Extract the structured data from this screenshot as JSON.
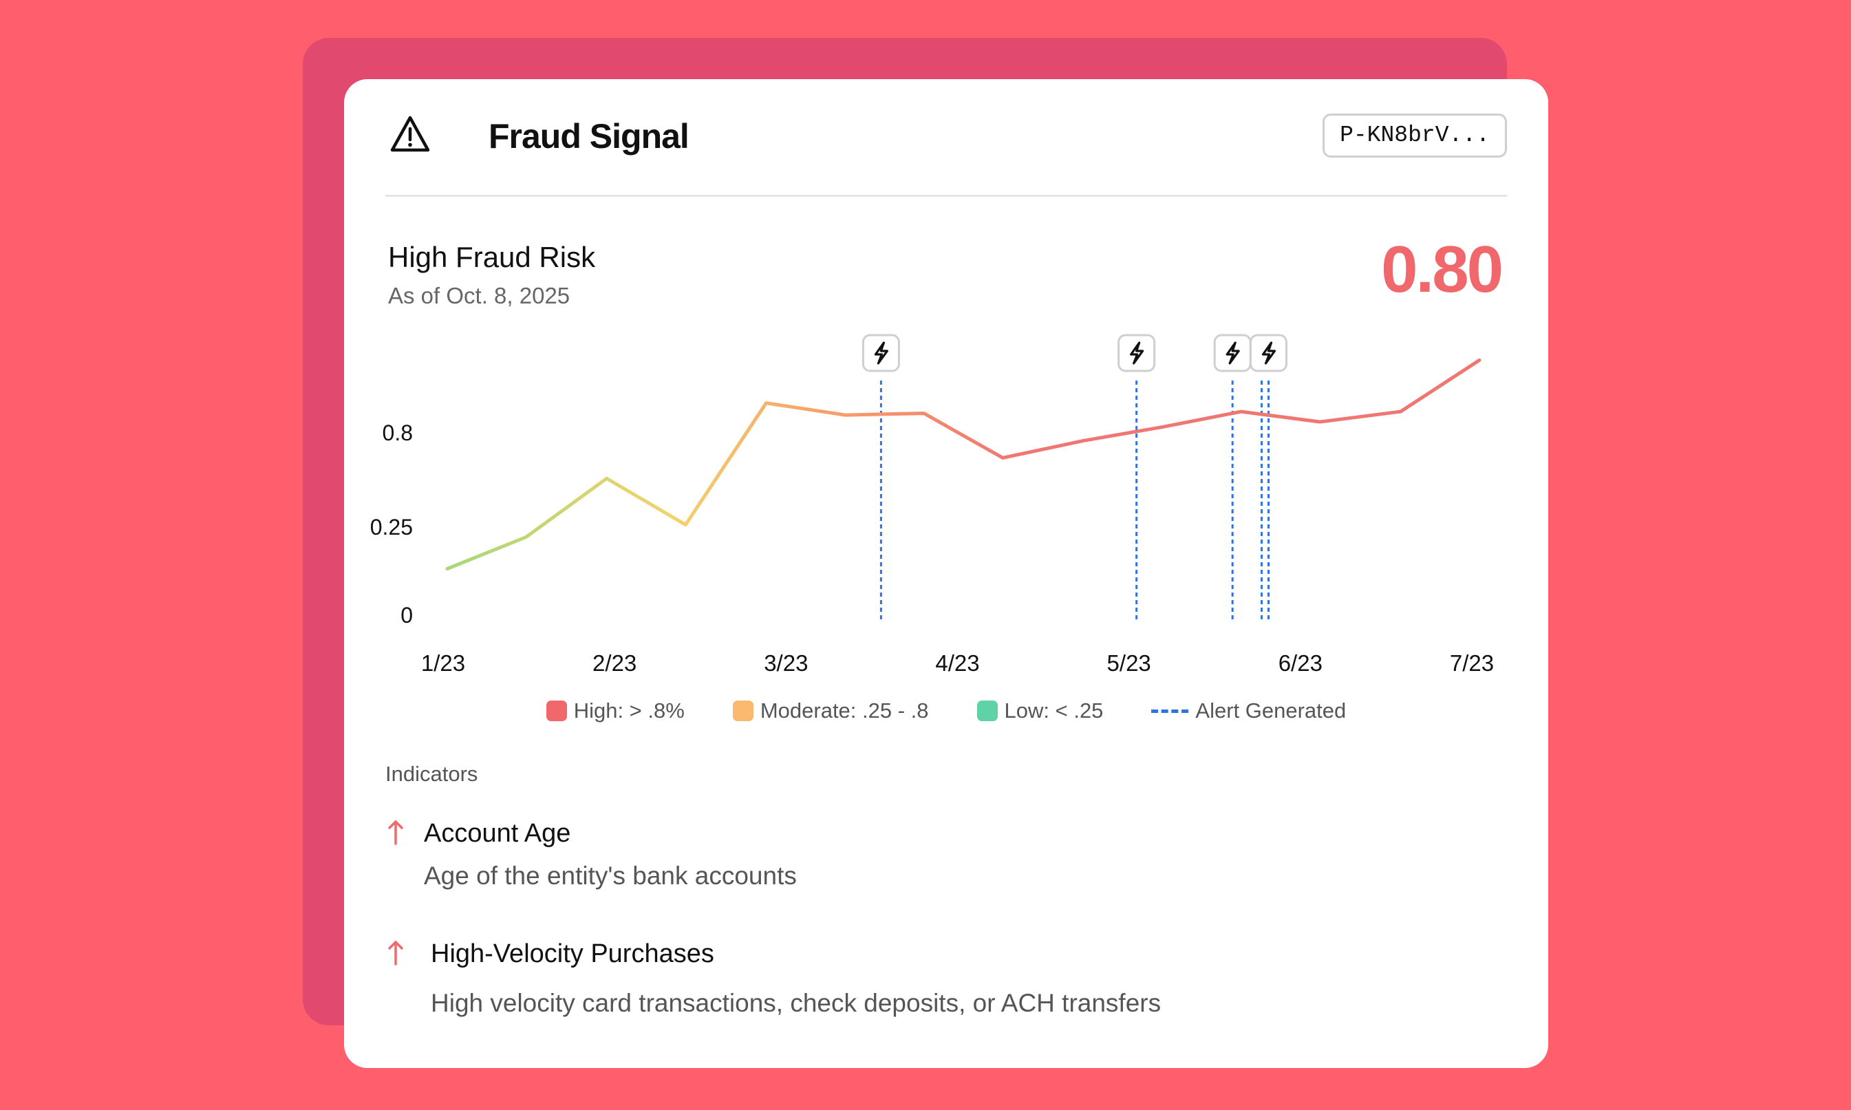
{
  "header": {
    "title": "Fraud Signal",
    "id_label": "P-KN8brV..."
  },
  "risk": {
    "label": "High Fraud Risk",
    "as_of": "As of Oct. 8, 2025",
    "score": "0.80",
    "score_color": "#f0676c"
  },
  "chart_data": {
    "type": "line",
    "x_tick_labels": [
      "1/23",
      "2/23",
      "3/23",
      "4/23",
      "5/23",
      "6/23",
      "7/23"
    ],
    "y_tick_labels": [
      "0.8",
      "0.25",
      "0"
    ],
    "x_position_units": "months from 1/23",
    "series": [
      {
        "x": [
          0,
          0.46,
          0.93,
          1.39,
          1.86,
          2.32,
          2.78,
          3.24,
          3.71,
          4.17,
          4.63,
          5.09,
          5.56,
          6.02
        ],
        "values": [
          0.13,
          0.22,
          0.53,
          0.26,
          0.97,
          0.9,
          0.91,
          0.65,
          0.75,
          0.83,
          0.92,
          0.86,
          0.92,
          1.22
        ]
      }
    ],
    "alerts_x": [
      2.53,
      4.02,
      4.58,
      4.75,
      4.79
    ],
    "alert_markers_x": [
      2.53,
      4.02,
      4.58,
      4.79
    ],
    "legend": [
      {
        "label": "High: > .8%",
        "color": "#f0676c",
        "style": "swatch"
      },
      {
        "label": "Moderate: .25 - .8",
        "color": "#fbb86f",
        "style": "swatch"
      },
      {
        "label": "Low: < .25",
        "color": "#5fd3a5",
        "style": "swatch"
      },
      {
        "label": "Alert Generated",
        "color": "#2f74e0",
        "style": "dashed-line"
      }
    ],
    "gradient": [
      "#a8d77a",
      "#f2d36b",
      "#f9a46a",
      "#f07672"
    ],
    "grid": false
  },
  "indicators": {
    "label": "Indicators",
    "items": [
      {
        "name": "Account Age",
        "description": "Age of the entity's bank accounts",
        "trend": "up"
      },
      {
        "name": "High-Velocity Purchases",
        "description": "High velocity card transactions, check deposits, or ACH transfers",
        "trend": "up"
      }
    ]
  }
}
